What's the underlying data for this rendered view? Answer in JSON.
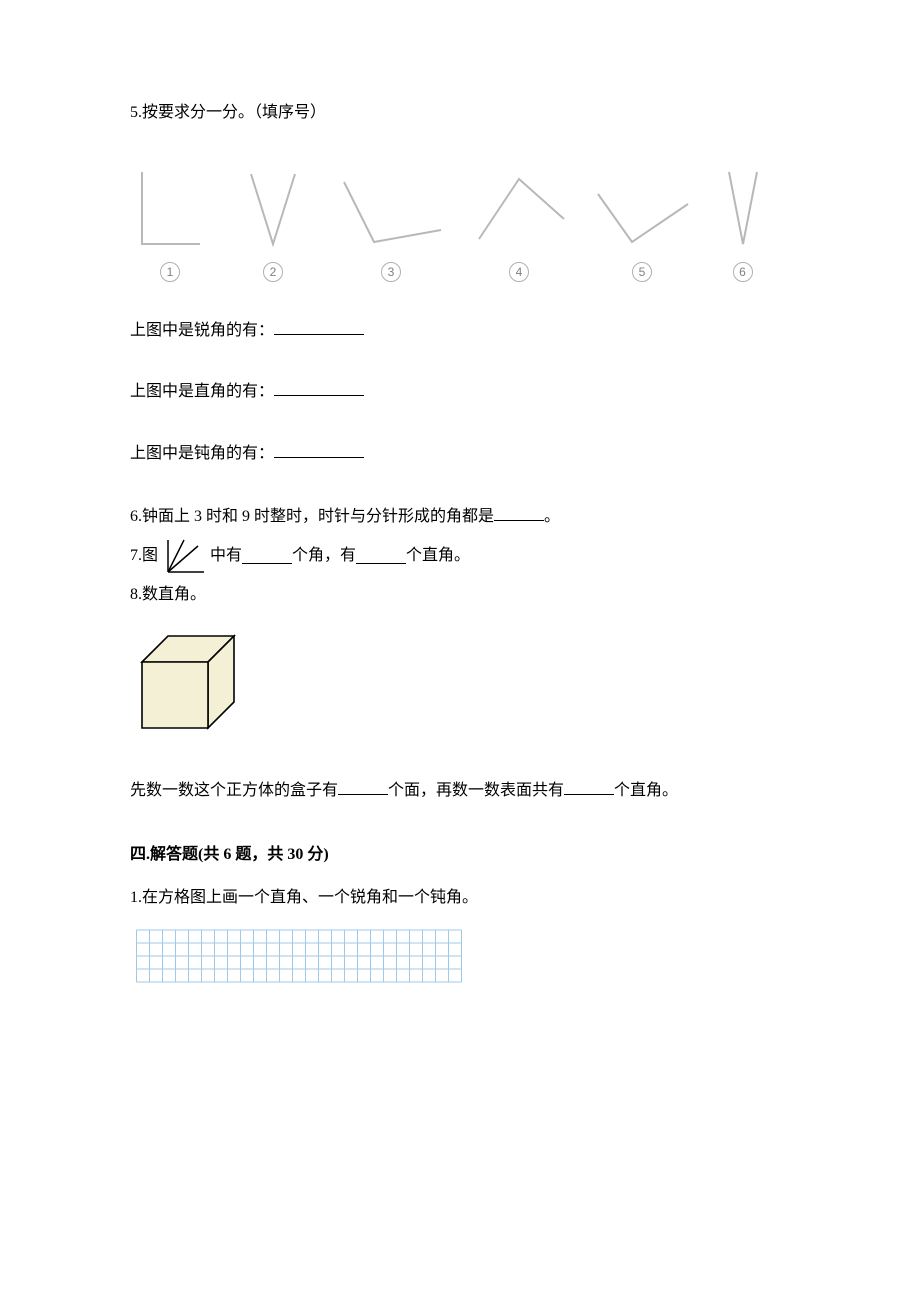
{
  "q5": {
    "number": "5.",
    "title": "按要求分一分。（填序号）",
    "labels": [
      "1",
      "2",
      "3",
      "4",
      "5",
      "6"
    ],
    "fill_prompts": {
      "acute": "上图中是锐角的有：",
      "right": "上图中是直角的有：",
      "obtuse": "上图中是钝角的有："
    },
    "angle_stroke": "#b8b8b8",
    "angle_stroke_width": 2,
    "label_color": "#808080",
    "label_border": "#b0b0b0"
  },
  "q6": {
    "number": "6.",
    "text_before": "钟面上 3 时和 9 时整时，时针与分针形成的角都是",
    "text_after": "。"
  },
  "q7": {
    "number": "7.",
    "text1": "图",
    "text2": "中有",
    "text3": "个角，有",
    "text4": "个直角。",
    "icon_stroke": "#000000"
  },
  "q8": {
    "number": "8.",
    "title": "数直角。",
    "para_before1": "先数一数这个正方体的盒子有",
    "para_mid": "个面，再数一数表面共有",
    "para_after": "个直角。",
    "cube": {
      "fill": "#f4f0d6",
      "stroke": "#000000",
      "dash": "4,3"
    }
  },
  "section4": {
    "title": "四.解答题(共 6 题，共 30 分)"
  },
  "s4q1": {
    "number": "1.",
    "text": "在方格图上画一个直角、一个锐角和一个钝角。",
    "grid": {
      "line_color": "#9fc9e8",
      "cols": 25,
      "rows": 4,
      "cell": 13
    }
  }
}
